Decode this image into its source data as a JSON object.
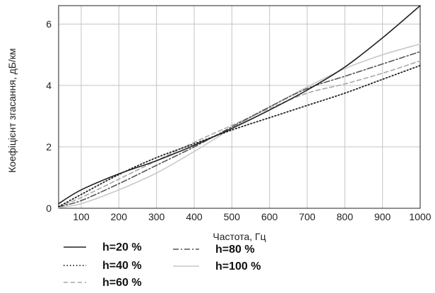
{
  "chart_data": {
    "type": "line",
    "xlabel": "Частота, Гц",
    "ylabel": "Коефіцієнт згасання, дБ/км",
    "xlim": [
      40,
      1000
    ],
    "ylim": [
      0,
      6.6
    ],
    "x_ticks": [
      100,
      200,
      300,
      400,
      500,
      600,
      700,
      800,
      900,
      1000
    ],
    "y_ticks": [
      0,
      2,
      4,
      6
    ],
    "grid": true,
    "legend_position": "bottom-left",
    "x": [
      40,
      100,
      200,
      300,
      400,
      500,
      600,
      700,
      800,
      900,
      1000
    ],
    "series": [
      {
        "name": "h=20 %",
        "color": "#222222",
        "style": "solid",
        "values": [
          0.15,
          0.6,
          1.12,
          1.55,
          2.05,
          2.6,
          3.2,
          3.85,
          4.6,
          5.55,
          6.6
        ]
      },
      {
        "name": "h=40 %",
        "color": "#222222",
        "style": "dotted",
        "values": [
          0.05,
          0.45,
          1.1,
          1.65,
          2.1,
          2.55,
          2.95,
          3.35,
          3.75,
          4.2,
          4.65
        ]
      },
      {
        "name": "h=60 %",
        "color": "#a8a8a8",
        "style": "dashed",
        "values": [
          0.05,
          0.35,
          0.95,
          1.55,
          2.15,
          2.7,
          3.25,
          3.75,
          4.05,
          4.4,
          4.8
        ]
      },
      {
        "name": "h=80 %",
        "color": "#555555",
        "style": "dashdot",
        "values": [
          0.05,
          0.25,
          0.8,
          1.4,
          2.0,
          2.65,
          3.3,
          3.9,
          4.3,
          4.7,
          5.1
        ]
      },
      {
        "name": "h=100 %",
        "color": "#c8c8c8",
        "style": "solid",
        "values": [
          0.02,
          0.15,
          0.6,
          1.15,
          1.85,
          2.6,
          3.3,
          3.95,
          4.55,
          5.0,
          5.35
        ]
      }
    ]
  }
}
